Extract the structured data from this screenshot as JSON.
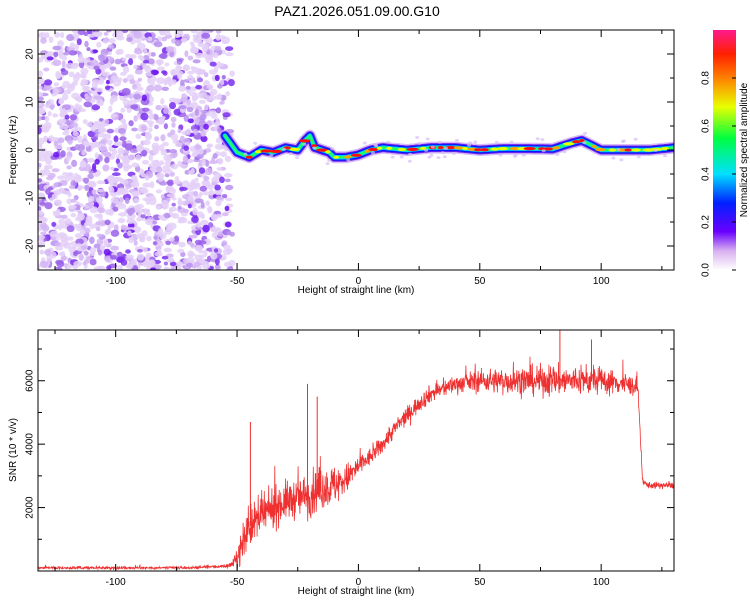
{
  "title": "PAZ1.2026.051.09.00.G10",
  "chart_data": [
    {
      "type": "heatmap",
      "name": "spectrogram",
      "xlabel": "Height of straight line (km)",
      "ylabel": "Frequency (Hz)",
      "xlim": [
        -132,
        130
      ],
      "ylim": [
        -25,
        25
      ],
      "xticks": [
        -100,
        -50,
        0,
        50,
        100
      ],
      "yticks": [
        -20,
        -10,
        0,
        10,
        20
      ],
      "noise_region_x": [
        -132,
        -55
      ],
      "signal_track": {
        "x": [
          -55,
          -50,
          -45,
          -40,
          -35,
          -30,
          -25,
          -22,
          -20,
          -18,
          -15,
          -12,
          -10,
          -5,
          0,
          5,
          10,
          20,
          30,
          40,
          50,
          60,
          70,
          80,
          88,
          92,
          96,
          100,
          110,
          120,
          130
        ],
        "freq": [
          3,
          -0.5,
          -1.5,
          0,
          -0.5,
          0.5,
          0,
          2,
          3,
          0.5,
          0,
          -0.5,
          -1.5,
          -1.5,
          -1,
          0,
          0.5,
          0,
          0.5,
          0.5,
          0,
          0.3,
          0.3,
          0.2,
          1.5,
          2,
          1,
          0,
          0,
          0,
          0.5
        ]
      },
      "colorbar": {
        "label": "Normalized spectral amplitude",
        "range": [
          0,
          1
        ],
        "ticks": [
          0.0,
          0.2,
          0.4,
          0.6,
          0.8
        ],
        "tick_labels": [
          "0.0",
          "0.2",
          "0.4",
          "0.6",
          "0.8"
        ]
      }
    },
    {
      "type": "line",
      "name": "snr",
      "xlabel": "Height of straight line (km)",
      "ylabel": "SNR (10 * v/v)",
      "xlim": [
        -132,
        130
      ],
      "ylim": [
        0,
        7600
      ],
      "xticks": [
        -100,
        -50,
        0,
        50,
        100
      ],
      "yticks": [
        2000,
        4000,
        6000
      ],
      "color": "#ee3030",
      "series_envelope": {
        "x": [
          -132,
          -70,
          -55,
          -52,
          -50,
          -48,
          -45,
          -40,
          -35,
          -30,
          -25,
          -20,
          -15,
          -10,
          -5,
          0,
          5,
          10,
          15,
          20,
          25,
          30,
          40,
          50,
          60,
          80,
          100,
          110,
          115,
          116,
          117,
          120,
          130
        ],
        "mean": [
          100,
          100,
          150,
          200,
          400,
          800,
          1400,
          1700,
          2000,
          2200,
          2300,
          2400,
          2600,
          2700,
          2900,
          3300,
          3600,
          4000,
          4500,
          4900,
          5300,
          5600,
          5900,
          6000,
          6000,
          6000,
          6000,
          5900,
          5800,
          4500,
          2800,
          2700,
          2700
        ],
        "spread": [
          60,
          60,
          80,
          150,
          400,
          900,
          900,
          900,
          900,
          900,
          900,
          1000,
          1000,
          900,
          700,
          500,
          400,
          400,
          400,
          400,
          400,
          400,
          400,
          500,
          600,
          700,
          600,
          500,
          400,
          300,
          150,
          150,
          150
        ]
      },
      "spikes": [
        {
          "x": -44.5,
          "y": 4700
        },
        {
          "x": -21,
          "y": 5900
        },
        {
          "x": -17,
          "y": 5500
        },
        {
          "x": 83,
          "y": 7600
        },
        {
          "x": 96,
          "y": 7300
        }
      ]
    }
  ]
}
